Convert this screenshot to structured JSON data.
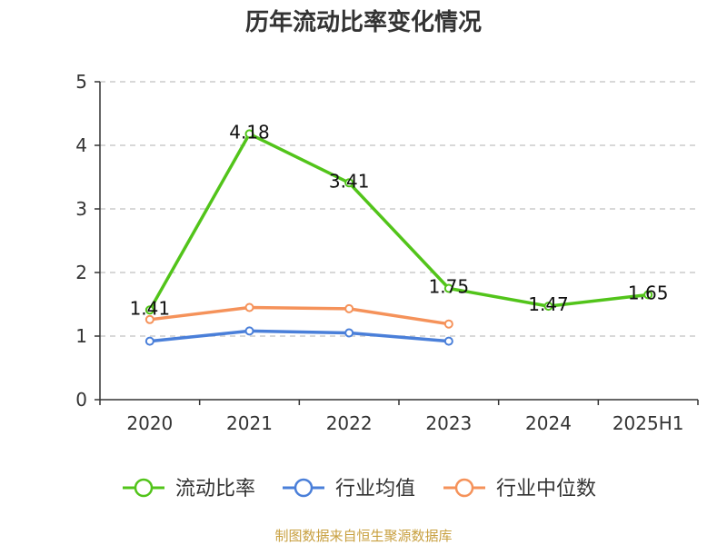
{
  "chart_data": {
    "type": "line",
    "title": "历年流动比率变化情况",
    "categories": [
      "2020",
      "2021",
      "2022",
      "2023",
      "2024",
      "2025H1"
    ],
    "ylim": [
      0,
      5
    ],
    "yticks": [
      "0",
      "1",
      "2",
      "3",
      "4",
      "5"
    ],
    "grid": true,
    "legend_position": "bottom",
    "series": [
      {
        "name": "流动比率",
        "color": "#52c41a",
        "values": [
          1.41,
          4.18,
          3.41,
          1.75,
          1.47,
          1.65
        ],
        "labels": [
          "1.41",
          "4.18",
          "3.41",
          "1.75",
          "1.47",
          "1.65"
        ]
      },
      {
        "name": "行业均值",
        "color": "#4a7fd9",
        "values": [
          0.92,
          1.08,
          1.05,
          0.92,
          null,
          null
        ]
      },
      {
        "name": "行业中位数",
        "color": "#f5925a",
        "values": [
          1.26,
          1.45,
          1.43,
          1.19,
          null,
          null
        ]
      }
    ]
  },
  "source": "制图数据来自恒生聚源数据库"
}
